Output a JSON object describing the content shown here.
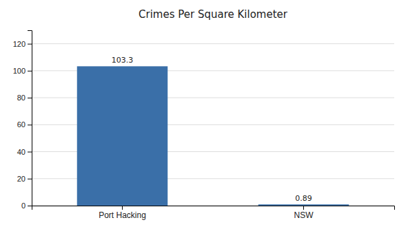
{
  "chart_data": {
    "type": "bar",
    "title": "Crimes Per Square Kilometer",
    "categories": [
      "Port Hacking",
      "NSW"
    ],
    "values": [
      103.3,
      0.89
    ],
    "colors": [
      "#3a6fa8",
      "#3a6fa8"
    ],
    "ylim": [
      0,
      130
    ],
    "yticks": [
      0,
      20,
      40,
      60,
      80,
      100,
      120
    ],
    "grid": true,
    "data_labels": true
  }
}
